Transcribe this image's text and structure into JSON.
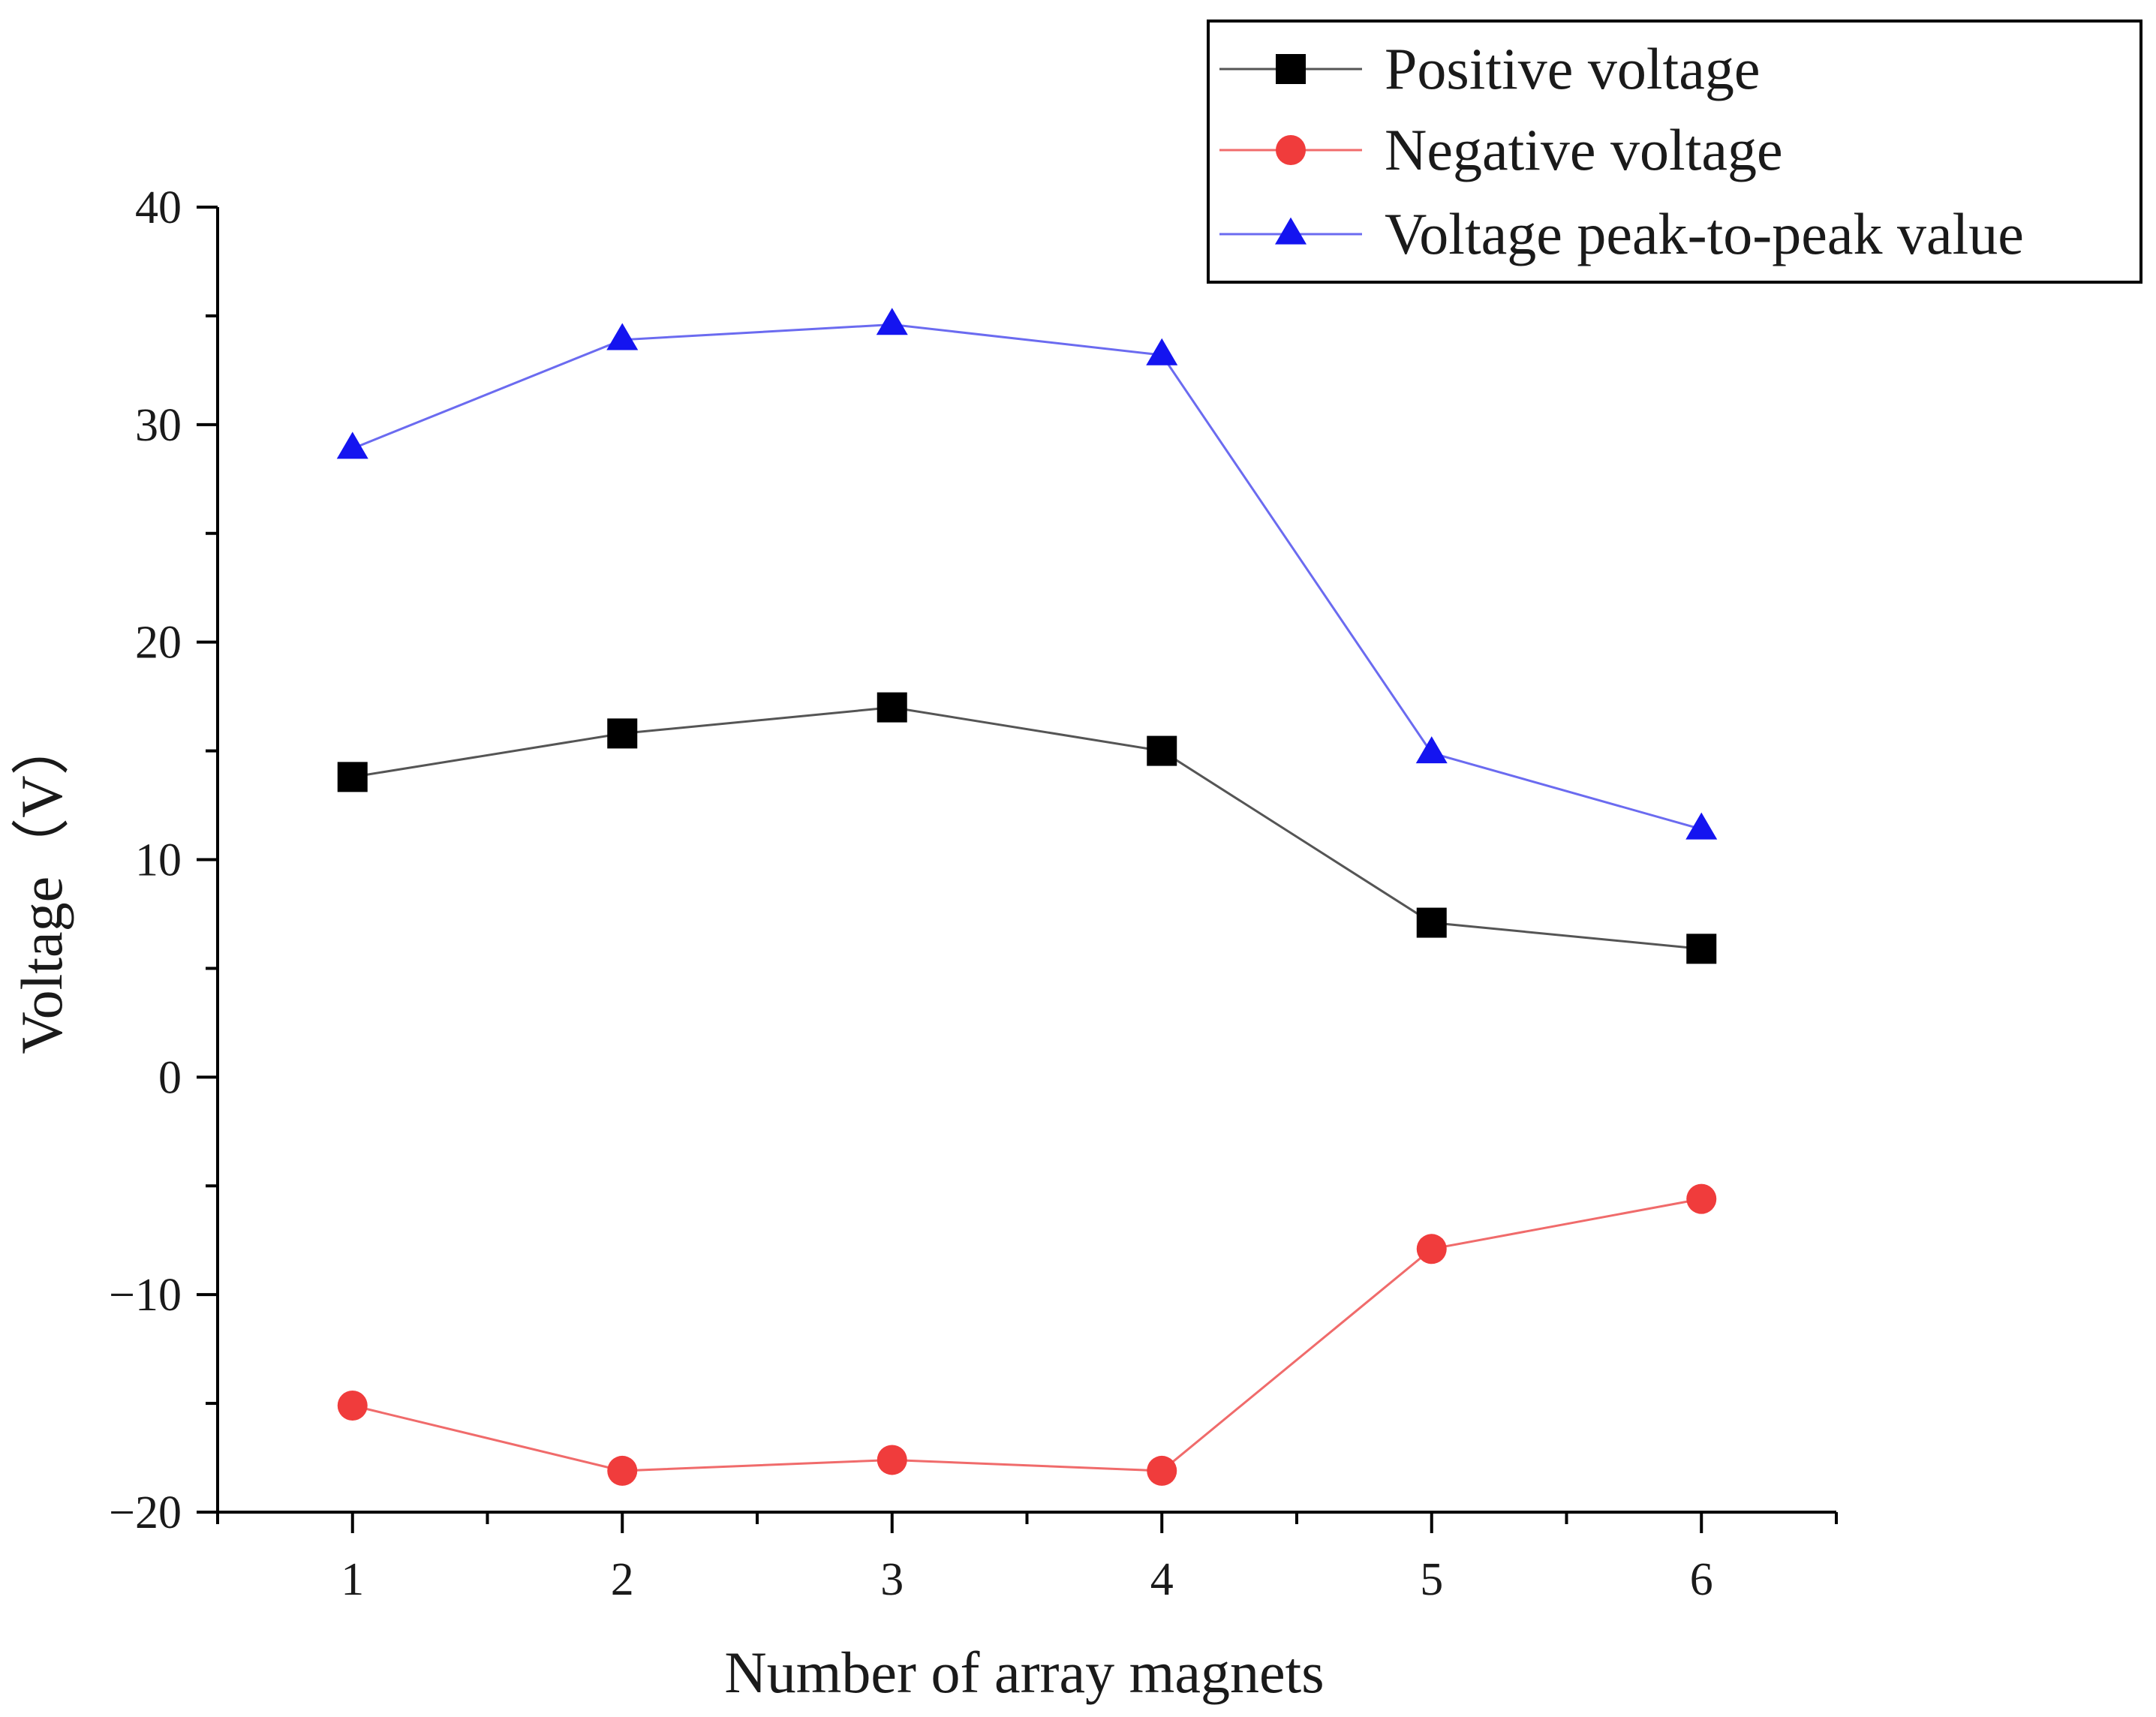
{
  "chart_data": {
    "type": "line",
    "title": "",
    "xlabel": "Number of array magnets",
    "ylabel": "Voltage（V）",
    "xlim": [
      0.5,
      6.5
    ],
    "ylim": [
      -20,
      40
    ],
    "x": [
      1,
      2,
      3,
      4,
      5,
      6
    ],
    "xticks": [
      1,
      2,
      3,
      4,
      5,
      6
    ],
    "xtick_labels": [
      "1",
      "2",
      "3",
      "4",
      "5",
      "6"
    ],
    "yticks": [
      -20,
      -10,
      0,
      10,
      20,
      30,
      40
    ],
    "ytick_labels": [
      "−20",
      "−10",
      "0",
      "10",
      "20",
      "30",
      "40"
    ],
    "grid": false,
    "legend_position": "top-right",
    "series": [
      {
        "name": "Positive voltage",
        "marker": "square",
        "color": "#000000",
        "line_color": "#555555",
        "values": [
          13.8,
          15.8,
          17.0,
          15.0,
          7.1,
          5.9
        ]
      },
      {
        "name": "Negative voltage",
        "marker": "circle",
        "color": "#f03c3c",
        "line_color": "#f06b6b",
        "values": [
          -15.1,
          -18.1,
          -17.6,
          -18.1,
          -7.9,
          -5.6
        ]
      },
      {
        "name": "Voltage peak-to-peak value",
        "marker": "triangle",
        "color": "#1414f0",
        "line_color": "#6b6bf0",
        "values": [
          28.9,
          33.9,
          34.6,
          33.2,
          14.9,
          11.4
        ]
      }
    ]
  }
}
